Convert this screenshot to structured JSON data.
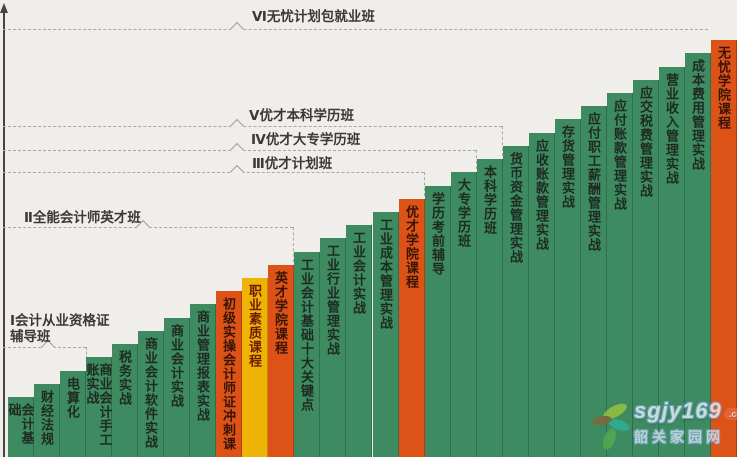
{
  "chart_data": {
    "type": "bar",
    "title": "",
    "xlabel": "",
    "ylabel": "",
    "axis_note": "vertical arrow axis on left, no numeric ticks; bars form an ascending staircase left to right",
    "categories": [
      "会计基础",
      "财经法规",
      "电算化",
      "商业会计手工账实战",
      "税务实战",
      "商业会计软件实战",
      "商业会计实战",
      "商业管理报表实战",
      "初级实操会计师证冲刺课",
      "职业素质课程",
      "英才学院课程",
      "工业会计基础十大关键点",
      "工业行业管理实战",
      "工业会计实战",
      "工业成本管理实战",
      "优才学院课程",
      "学历考前辅导",
      "大专学历班",
      "本科学历班",
      "货币资金管理实战",
      "应收账款管理实战",
      "存货管理实战",
      "应付职工薪酬管理实战",
      "应付账款管理实战",
      "应交税费管理实战",
      "营业收入管理实战",
      "成本费用管理实战",
      "无忧学院课程"
    ],
    "values": [
      1,
      2,
      3,
      4,
      5,
      6,
      7,
      8,
      9,
      10,
      11,
      12,
      13,
      14,
      15,
      16,
      17,
      18,
      19,
      20,
      21,
      22,
      23,
      24,
      25,
      26,
      27,
      28
    ],
    "value_note": "schematic step rank (no numeric scale shown)",
    "annotations": [
      "Ⅰ会计从业资格证辅导班",
      "Ⅱ全能会计师英才班",
      "Ⅲ优才计划班",
      "Ⅳ优才大专学历班",
      "Ⅴ优才本科学历班",
      "Ⅵ无忧计划包就业班"
    ]
  },
  "bars": [
    {
      "label": "会计基础",
      "type": "green"
    },
    {
      "label": "财经法规",
      "type": "green"
    },
    {
      "label": "电算化",
      "type": "green"
    },
    {
      "label": "商业会计手工账实战",
      "type": "green"
    },
    {
      "label": "税务实战",
      "type": "green"
    },
    {
      "label": "商业会计软件实战",
      "type": "green"
    },
    {
      "label": "商业会计实战",
      "type": "green"
    },
    {
      "label": "商业管理报表实战",
      "type": "green"
    },
    {
      "label": "初级实操会计师证冲刺课",
      "type": "orange"
    },
    {
      "label": "职业素质课程",
      "type": "yellow"
    },
    {
      "label": "英才学院课程",
      "type": "orange"
    },
    {
      "label": "工业会计基础十大关键点",
      "type": "green"
    },
    {
      "label": "工业行业管理实战",
      "type": "green"
    },
    {
      "label": "工业会计实战",
      "type": "green"
    },
    {
      "label": "工业成本管理实战",
      "type": "green"
    },
    {
      "label": "优才学院课程",
      "type": "orange"
    },
    {
      "label": "学历考前辅导",
      "type": "green"
    },
    {
      "label": "大专学历班",
      "type": "green"
    },
    {
      "label": "本科学历班",
      "type": "green"
    },
    {
      "label": "货币资金管理实战",
      "type": "green"
    },
    {
      "label": "应收账款管理实战",
      "type": "green"
    },
    {
      "label": "存货管理实战",
      "type": "green"
    },
    {
      "label": "应付职工薪酬管理实战",
      "type": "green"
    },
    {
      "label": "应付账款管理实战",
      "type": "green"
    },
    {
      "label": "应交税费管理实战",
      "type": "green"
    },
    {
      "label": "营业收入管理实战",
      "type": "green"
    },
    {
      "label": "成本费用管理实战",
      "type": "green"
    },
    {
      "label": "无忧学院课程",
      "type": "orange"
    }
  ],
  "milestones": [
    {
      "label": "Ⅰ会计从业资格证辅导班"
    },
    {
      "label": "Ⅱ全能会计师英才班"
    },
    {
      "label": "Ⅲ优才计划班"
    },
    {
      "label": "Ⅳ优才大专学历班"
    },
    {
      "label": "Ⅴ优才本科学历班"
    },
    {
      "label": "Ⅵ无忧计划包就业班"
    }
  ],
  "watermark": {
    "domain": "sgjy169",
    "tld": ".com",
    "site_name": "韶关家园网"
  },
  "colors": {
    "background": "#f0eeeb",
    "bar_green": "#3e8a61",
    "bar_orange": "#dd5317",
    "bar_yellow": "#efb306",
    "dashed_line": "#aca8a3",
    "axis": "#474440",
    "label_text": "#3b3934"
  }
}
